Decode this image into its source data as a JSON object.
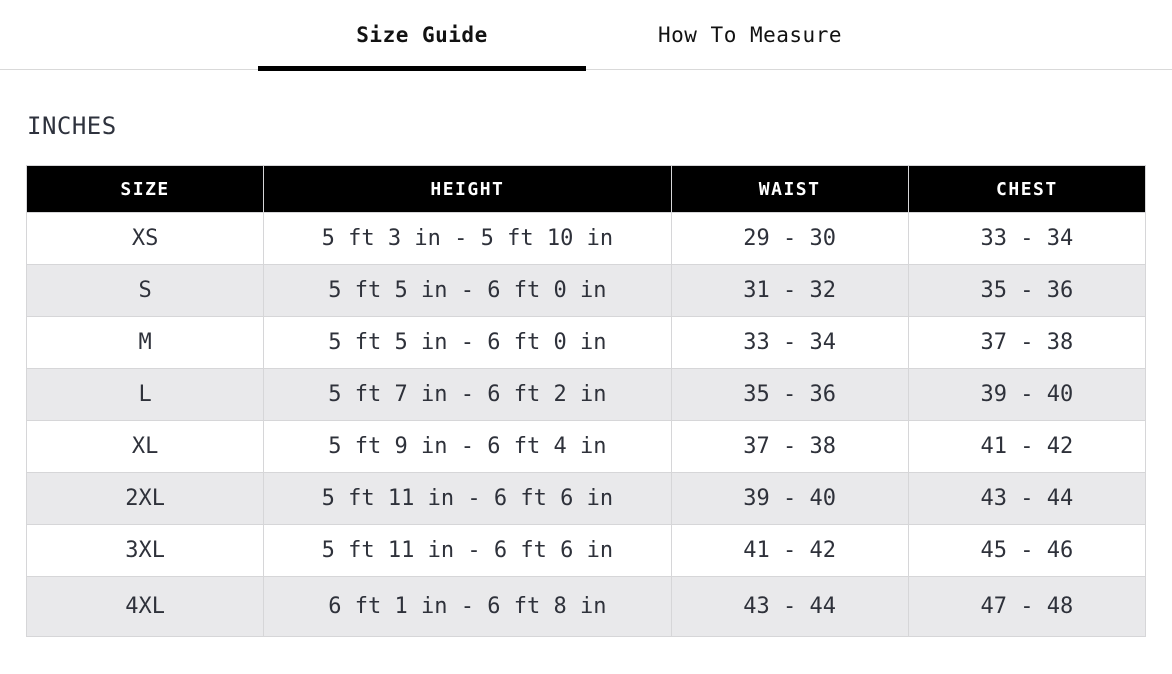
{
  "tabs": [
    {
      "label": "Size Guide",
      "active": true
    },
    {
      "label": "How To Measure",
      "active": false
    }
  ],
  "section_title": "INCHES",
  "table": {
    "headers": [
      "SIZE",
      "HEIGHT",
      "WAIST",
      "CHEST"
    ],
    "rows": [
      [
        "XS",
        "5 ft 3 in - 5 ft 10 in",
        "29 - 30",
        "33 - 34"
      ],
      [
        "S",
        "5 ft 5 in - 6 ft 0 in",
        "31 - 32",
        "35 - 36"
      ],
      [
        "M",
        "5 ft 5 in - 6 ft 0 in",
        "33 - 34",
        "37 - 38"
      ],
      [
        "L",
        "5 ft 7 in - 6 ft 2 in",
        "35 - 36",
        "39 - 40"
      ],
      [
        "XL",
        "5 ft 9 in - 6 ft 4 in",
        "37 - 38",
        "41 - 42"
      ],
      [
        "2XL",
        "5 ft 11 in - 6 ft 6 in",
        "39 - 40",
        "43 - 44"
      ],
      [
        "3XL",
        "5 ft 11 in - 6 ft 6 in",
        "41 - 42",
        "45 - 46"
      ],
      [
        "4XL",
        "6 ft 1 in - 6 ft 8 in",
        "43 - 44",
        "47 - 48"
      ]
    ]
  },
  "colors": {
    "header_bg": "#000000",
    "header_text": "#ffffff",
    "active_tab_underline": "#000000",
    "row_stripe": "#e9e9eb",
    "border": "#d6d6d8",
    "body_text": "#2e313a",
    "tabbar_divider": "#d9d9d9"
  }
}
